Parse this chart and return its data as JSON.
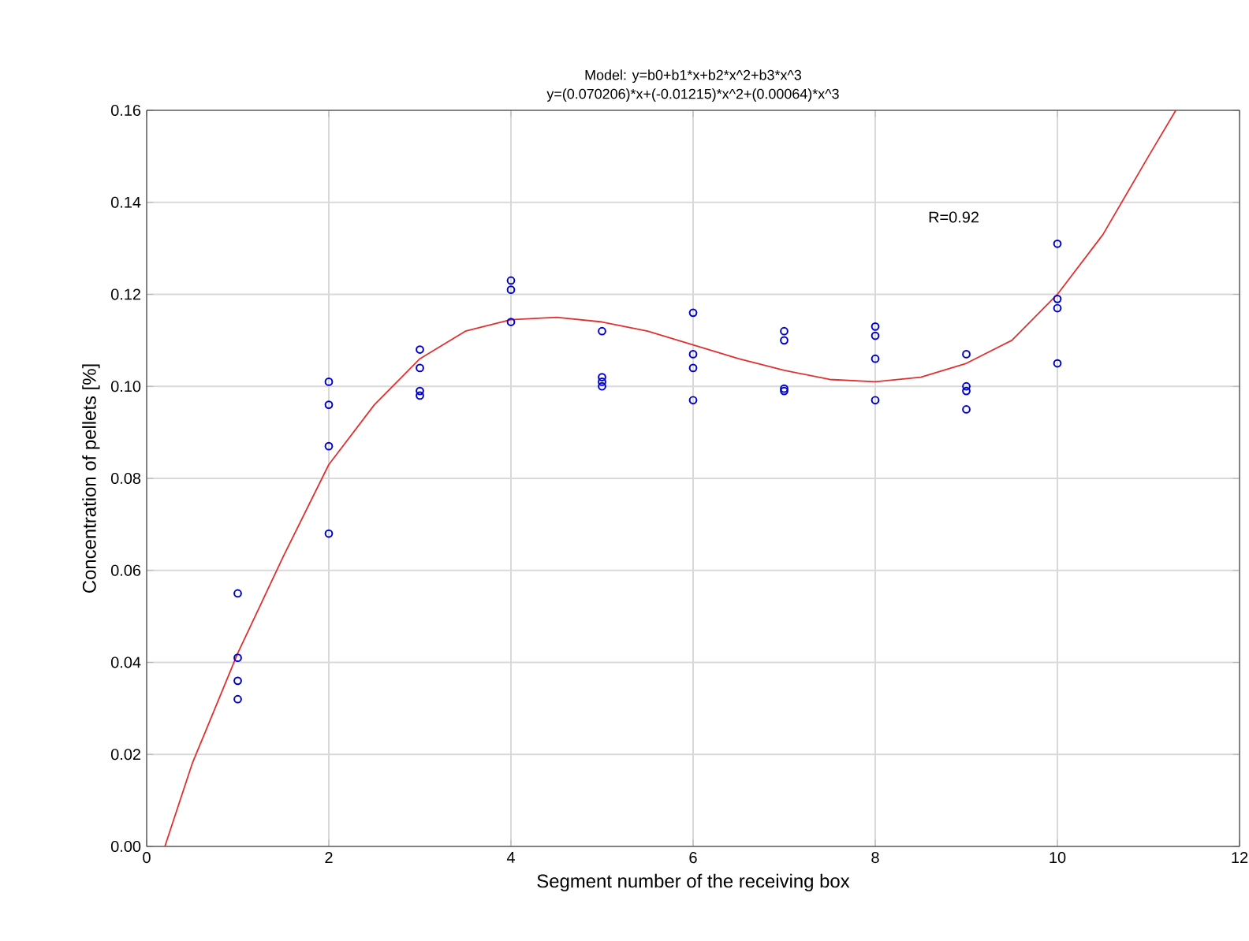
{
  "chart_data": {
    "type": "scatter",
    "title": "Model: y=b0+b1*x+b2*x^2+b3*x^3",
    "subtitle": "y=(0.070206)*x+(-0.01215)*x^2+(0.00064)*x^3",
    "xlabel": "Segment number of the receiving box",
    "ylabel": "Concentration of pellets [%]",
    "annotations": [
      "R=0.92"
    ],
    "xlim": [
      0,
      12
    ],
    "ylim": [
      0,
      0.16
    ],
    "xticks": [
      0,
      2,
      4,
      6,
      8,
      10,
      12
    ],
    "yticks": [
      {
        "value": 0,
        "label": "0.00"
      },
      {
        "value": 0.02,
        "label": "0.02"
      },
      {
        "value": 0.04,
        "label": "0.04"
      },
      {
        "value": 0.06,
        "label": "0.06"
      },
      {
        "value": 0.08,
        "label": "0.08"
      },
      {
        "value": 0.1,
        "label": "0.10"
      },
      {
        "value": 0.12,
        "label": "0.12"
      },
      {
        "value": 0.14,
        "label": "0.14"
      },
      {
        "value": 0.16,
        "label": "0.16"
      }
    ],
    "grid": true,
    "marker": "circle",
    "series": [
      {
        "color": "#0000cc",
        "x": [
          1,
          1,
          1,
          1,
          2,
          2,
          2,
          2,
          3,
          3,
          3,
          3,
          4,
          4,
          4,
          5,
          5,
          5,
          5,
          6,
          6,
          6,
          6,
          7,
          7,
          7,
          7,
          8,
          8,
          8,
          8,
          9,
          9,
          9,
          9,
          10,
          10,
          10,
          10
        ],
        "values": [
          0.055,
          0.041,
          0.036,
          0.032,
          0.101,
          0.096,
          0.087,
          0.068,
          0.108,
          0.104,
          0.099,
          0.098,
          0.123,
          0.121,
          0.114,
          0.112,
          0.102,
          0.101,
          0.1,
          0.116,
          0.107,
          0.104,
          0.097,
          0.112,
          0.11,
          0.0995,
          0.099,
          0.113,
          0.111,
          0.106,
          0.097,
          0.107,
          0.1,
          0.099,
          0.095,
          0.131,
          0.119,
          0.117,
          0.105
        ]
      },
      {
        "type": "line",
        "color": "#e03030",
        "marker": "none",
        "x": [
          0.2,
          0.5,
          1,
          1.5,
          2,
          2.5,
          3,
          3.5,
          4,
          4.5,
          5,
          5.5,
          6,
          6.5,
          7,
          7.5,
          8,
          8.5,
          9,
          9.5,
          10,
          10.5,
          11,
          11.3
        ],
        "values": [
          0,
          0.018,
          0.042,
          0.063,
          0.083,
          0.096,
          0.106,
          0.112,
          0.1145,
          0.115,
          0.114,
          0.112,
          0.109,
          0.106,
          0.1035,
          0.1015,
          0.101,
          0.102,
          0.105,
          0.11,
          0.12,
          0.133,
          0.15,
          0.16
        ]
      }
    ]
  }
}
